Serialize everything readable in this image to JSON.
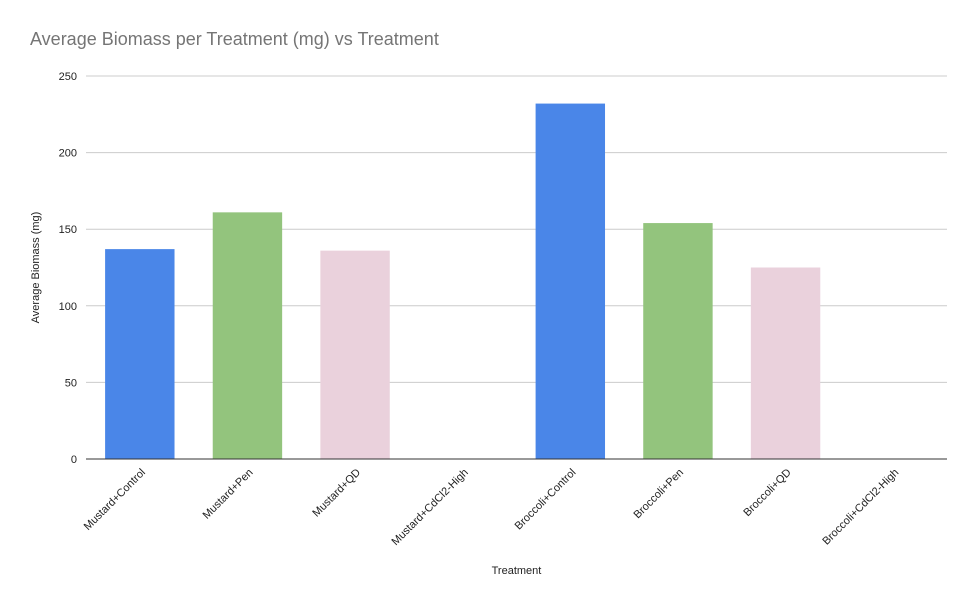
{
  "chart_data": {
    "type": "bar",
    "title": "Average Biomass per Treatment (mg) vs Treatment",
    "xlabel": "Treatment",
    "ylabel": "Average Biomass (mg)",
    "ylim": [
      0,
      250
    ],
    "yticks": [
      0,
      50,
      100,
      150,
      200,
      250
    ],
    "grid": true,
    "categories": [
      "Mustard+Control",
      "Mustard+Pen",
      "Mustard+QD",
      "Mustard+CdCl2-High",
      "Broccoli+Control",
      "Broccoli+Pen",
      "Broccoli+QD",
      "Broccoli+CdCl2-High"
    ],
    "values": [
      137,
      161,
      136,
      0,
      232,
      154,
      125,
      0
    ],
    "colors": [
      "#4a86e8",
      "#93c47d",
      "#ead1dc",
      "#ead1dc",
      "#4a86e8",
      "#93c47d",
      "#ead1dc",
      "#ead1dc"
    ]
  }
}
